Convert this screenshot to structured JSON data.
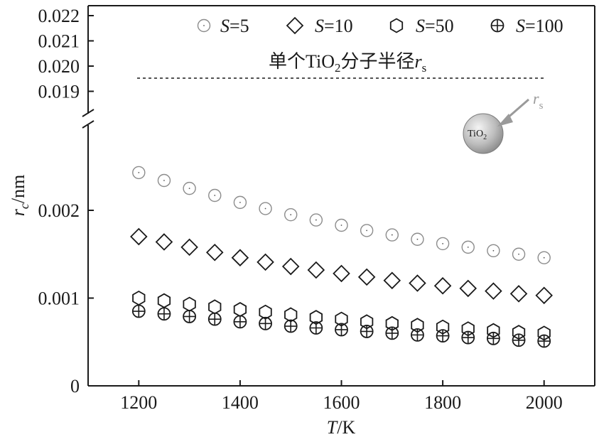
{
  "chart_data": {
    "type": "scatter",
    "xlabel": {
      "var": "T",
      "unit": "/K"
    },
    "ylabel": {
      "var": "r",
      "sub": "c",
      "unit": "/nm"
    },
    "xlim": [
      1100,
      2100
    ],
    "x_ticks": [
      1200,
      1400,
      1600,
      1800,
      2000
    ],
    "y_lower_ticks": [
      {
        "value": 0,
        "label": "0"
      },
      {
        "value": 0.001,
        "label": "0.001"
      },
      {
        "value": 0.002,
        "label": "0.002"
      }
    ],
    "y_upper_ticks": [
      {
        "value": 0.019,
        "label": "0.019"
      },
      {
        "value": 0.02,
        "label": "0.020"
      },
      {
        "value": 0.021,
        "label": "0.021"
      },
      {
        "value": 0.022,
        "label": "0.022"
      }
    ],
    "y_break": "broken axis between 0.0025 and 0.0185",
    "grid": false,
    "legend_position": "top",
    "x": [
      1200,
      1250,
      1300,
      1350,
      1400,
      1450,
      1500,
      1550,
      1600,
      1650,
      1700,
      1750,
      1800,
      1850,
      1900,
      1950,
      2000
    ],
    "series": [
      {
        "name": "S=5",
        "var": "S",
        "val": "=5",
        "marker": "circle-dot",
        "values": [
          0.00243,
          0.00234,
          0.00225,
          0.00217,
          0.00209,
          0.00202,
          0.00195,
          0.00189,
          0.00183,
          0.00177,
          0.00172,
          0.00167,
          0.00162,
          0.00158,
          0.00154,
          0.0015,
          0.00146
        ]
      },
      {
        "name": "S=10",
        "var": "S",
        "val": "=10",
        "marker": "diamond",
        "values": [
          0.0017,
          0.00164,
          0.00158,
          0.00152,
          0.00146,
          0.00141,
          0.00136,
          0.00132,
          0.00128,
          0.00124,
          0.0012,
          0.00117,
          0.00114,
          0.00111,
          0.00108,
          0.00105,
          0.00103
        ]
      },
      {
        "name": "S=50",
        "var": "S",
        "val": "=50",
        "marker": "hexagon",
        "values": [
          0.001,
          0.00097,
          0.00093,
          0.0009,
          0.00087,
          0.00084,
          0.00081,
          0.00078,
          0.00076,
          0.00073,
          0.00071,
          0.00069,
          0.00067,
          0.00065,
          0.00063,
          0.00061,
          0.0006
        ]
      },
      {
        "name": "S=100",
        "var": "S",
        "val": "=100",
        "marker": "circle-plus",
        "values": [
          0.00085,
          0.00082,
          0.00079,
          0.00076,
          0.00073,
          0.00071,
          0.00068,
          0.00066,
          0.00064,
          0.00062,
          0.0006,
          0.00058,
          0.00057,
          0.00055,
          0.00054,
          0.00052,
          0.00051
        ]
      }
    ],
    "reference_line": {
      "value": 0.0195,
      "style": "dashed",
      "label_prefix": "单个TiO",
      "label_sub": "2",
      "label_suffix": "分子半径",
      "label_var": "r",
      "label_var_sub": "s"
    },
    "inset": {
      "ball_text": "TiO",
      "ball_sub": "2",
      "arrow_label": "r",
      "arrow_label_sub": "s"
    }
  }
}
